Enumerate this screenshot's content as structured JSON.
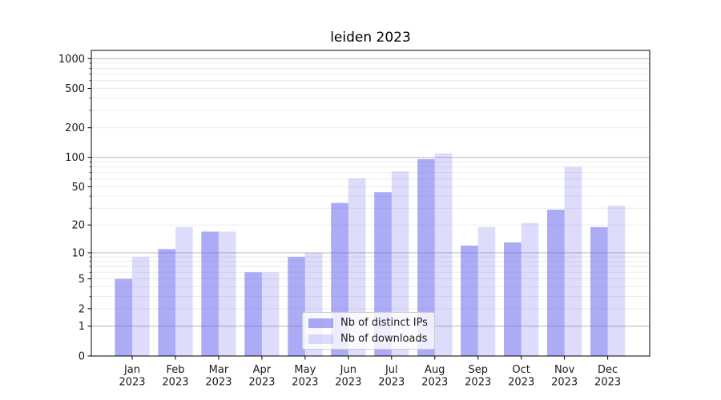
{
  "chart_data": {
    "type": "bar",
    "title": "leiden 2023",
    "xlabel": "",
    "ylabel": "",
    "yscale": "log1p",
    "ylim": [
      0,
      1000
    ],
    "grid": true,
    "legend_position": "lower center",
    "year": "2023",
    "categories": [
      "Jan",
      "Feb",
      "Mar",
      "Apr",
      "May",
      "Jun",
      "Jul",
      "Aug",
      "Sep",
      "Oct",
      "Nov",
      "Dec"
    ],
    "y_ticks": [
      0,
      1,
      2,
      5,
      10,
      20,
      50,
      100,
      200,
      500,
      1000
    ],
    "series": [
      {
        "name": "Nb of distinct IPs",
        "color": "rgba(102,102,238,0.55)",
        "values": [
          5,
          11,
          17,
          6,
          9,
          34,
          44,
          96,
          12,
          13,
          29,
          19
        ]
      },
      {
        "name": "Nb of downloads",
        "color": "rgba(102,102,238,0.22)",
        "values": [
          9,
          19,
          17,
          6,
          10,
          61,
          72,
          110,
          19,
          21,
          80,
          32
        ]
      }
    ],
    "colors": {
      "bar_base": "#6666ee",
      "grid_major": "#b5b5b5",
      "grid_minor": "#eaeaea",
      "axis": "#000000",
      "text": "#1a1a1a",
      "legend_border": "#cccccc"
    }
  }
}
